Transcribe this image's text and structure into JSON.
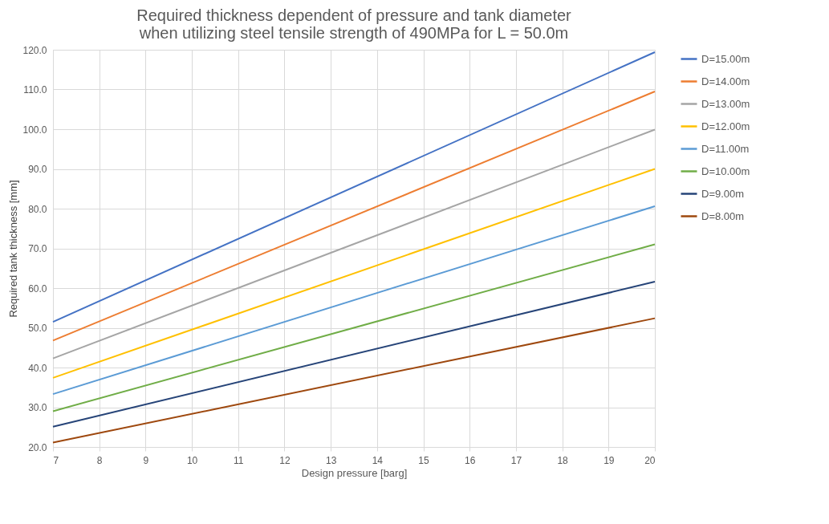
{
  "chart_data": {
    "type": "line",
    "title": [
      "Required thickness dependent of pressure and tank diameter",
      "when utilizing steel tensile strength of 490MPa for L = 50.0m"
    ],
    "xlabel": "Design pressure [barg]",
    "ylabel": "Required tank thickness [mm]",
    "x": [
      7,
      20
    ],
    "series": [
      {
        "name": "D=15.00m",
        "color": "#4472c4",
        "values": [
          51.5,
          119.4
        ]
      },
      {
        "name": "D=14.00m",
        "color": "#ed7d31",
        "values": [
          46.8,
          109.5
        ]
      },
      {
        "name": "D=13.00m",
        "color": "#a5a5a5",
        "values": [
          42.3,
          99.9
        ]
      },
      {
        "name": "D=12.00m",
        "color": "#ffc000",
        "values": [
          37.4,
          90.0
        ]
      },
      {
        "name": "D=11.00m",
        "color": "#5b9bd5",
        "values": [
          33.3,
          80.6
        ]
      },
      {
        "name": "D=10.00m",
        "color": "#70ad47",
        "values": [
          29.0,
          71.0
        ]
      },
      {
        "name": "D=9.00m",
        "color": "#264478",
        "values": [
          25.1,
          61.6
        ]
      },
      {
        "name": "D=8.00m",
        "color": "#9e480e",
        "values": [
          21.1,
          52.4
        ]
      }
    ],
    "xlim": [
      7,
      20
    ],
    "xticks": [
      7,
      8,
      9,
      10,
      11,
      12,
      13,
      14,
      15,
      16,
      17,
      18,
      19,
      20
    ],
    "ylim": [
      20,
      120
    ],
    "yticks": [
      {
        "value": 20,
        "label": "20.0"
      },
      {
        "value": 30,
        "label": "30.0"
      },
      {
        "value": 40,
        "label": "40.0"
      },
      {
        "value": 50,
        "label": "50.0"
      },
      {
        "value": 60,
        "label": "60.0"
      },
      {
        "value": 70,
        "label": "70.0"
      },
      {
        "value": 80,
        "label": "80.0"
      },
      {
        "value": 90,
        "label": "90.0"
      },
      {
        "value": 100,
        "label": "100.0"
      },
      {
        "value": 110,
        "label": "110.0"
      },
      {
        "value": 120,
        "label": "120.0"
      }
    ],
    "grid": true,
    "legend": "right",
    "marker": "none",
    "line_style": "solid"
  }
}
